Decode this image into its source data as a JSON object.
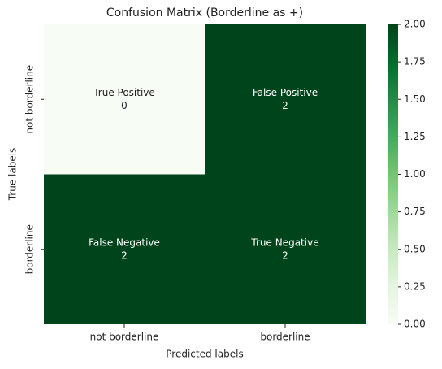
{
  "chart_data": {
    "type": "heatmap",
    "title": "Confusion Matrix (Borderline as +)",
    "x_label": "Predicted labels",
    "y_label": "True labels",
    "x_categories": [
      "not borderline",
      "borderline"
    ],
    "y_categories": [
      "not borderline",
      "borderline"
    ],
    "values": [
      [
        0,
        2
      ],
      [
        2,
        2
      ]
    ],
    "cell_labels": [
      [
        "True Positive",
        "False Positive"
      ],
      [
        "False Negative",
        "True Negative"
      ]
    ],
    "colorscale": [
      "#f7fcf5",
      "#e5f5e0",
      "#c7e9c0",
      "#a1d99b",
      "#74c476",
      "#41ab5d",
      "#238b45",
      "#006d2c",
      "#00441b"
    ],
    "clim": [
      0,
      2
    ],
    "cticks": [
      {
        "value": 0,
        "label": "0.00"
      },
      {
        "value": 0.25,
        "label": "0.25"
      },
      {
        "value": 0.5,
        "label": "0.50"
      },
      {
        "value": 0.75,
        "label": "0.75"
      },
      {
        "value": 1,
        "label": "1.00"
      },
      {
        "value": 1.25,
        "label": "1.25"
      },
      {
        "value": 1.5,
        "label": "1.50"
      },
      {
        "value": 1.75,
        "label": "1.75"
      },
      {
        "value": 2,
        "label": "2.00"
      }
    ]
  }
}
